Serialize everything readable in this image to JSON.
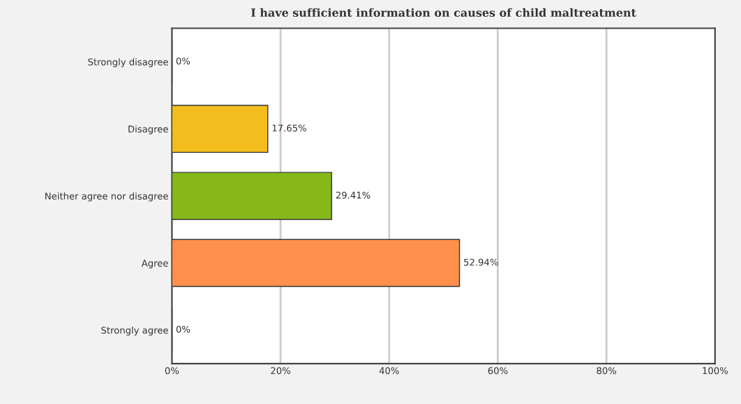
{
  "chart_data": {
    "type": "bar",
    "orientation": "horizontal",
    "title": "I have sufficient information on causes of child maltreatment",
    "categories": [
      "Strongly disagree",
      "Disagree",
      "Neither agree nor disagree",
      "Agree",
      "Strongly agree"
    ],
    "values": [
      0,
      17.65,
      29.41,
      52.94,
      0
    ],
    "colors": [
      "#333333",
      "#f2bd1d",
      "#86b81a",
      "#ff914d",
      "#333333"
    ],
    "value_labels": [
      "0%",
      "17.65%",
      "29.41%",
      "52.94%",
      "0%"
    ],
    "xlim": [
      0,
      100
    ],
    "xticks": [
      {
        "value": 0,
        "label": "0%"
      },
      {
        "value": 20,
        "label": "20%"
      },
      {
        "value": 40,
        "label": "40%"
      },
      {
        "value": 60,
        "label": "60%"
      },
      {
        "value": 80,
        "label": "80%"
      },
      {
        "value": 100,
        "label": "100%"
      }
    ],
    "grid": "x"
  }
}
